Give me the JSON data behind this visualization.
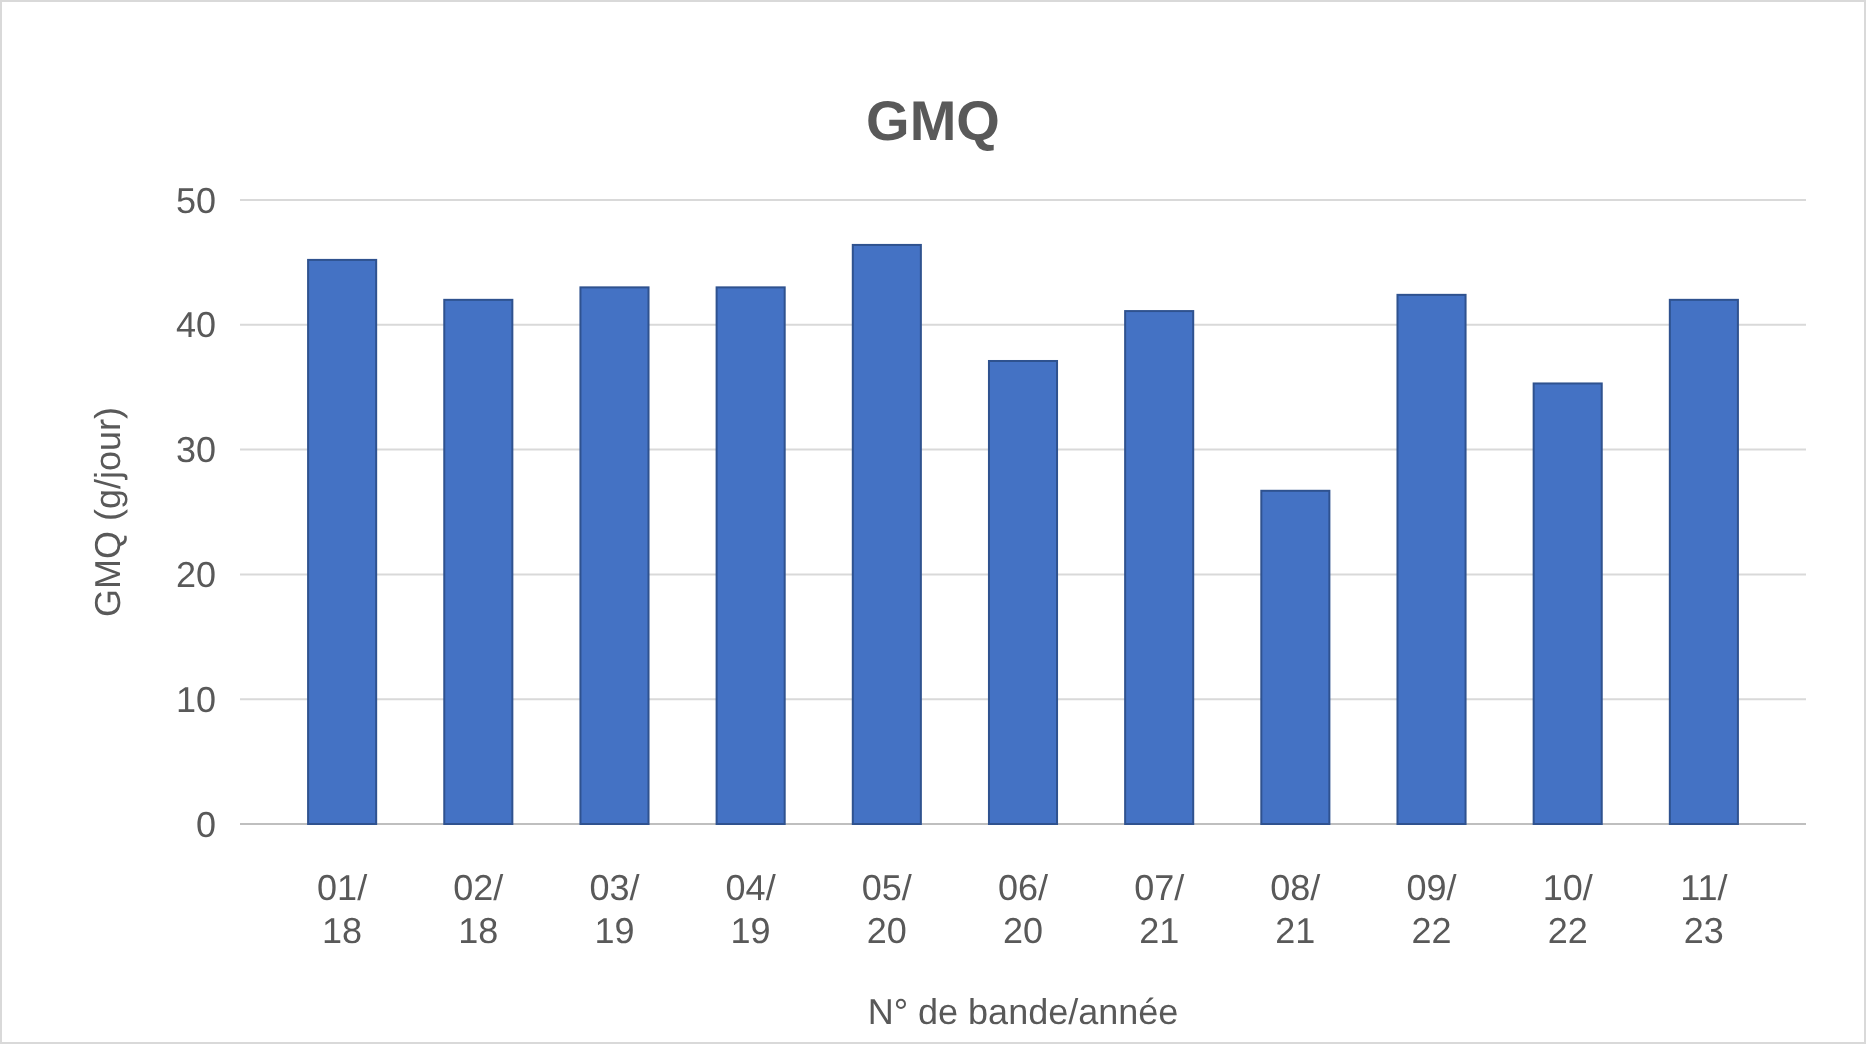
{
  "chart_data": {
    "type": "bar",
    "title": "GMQ",
    "xlabel": "N° de bande/année",
    "ylabel": "GMQ (g/jour)",
    "categories": [
      "01/\n18",
      "02/\n18",
      "03/\n19",
      "04/\n19",
      "05/\n20",
      "06/\n20",
      "07/\n21",
      "08/\n21",
      "09/\n22",
      "10/\n22",
      "11/\n23"
    ],
    "values": [
      45.2,
      42,
      43,
      43,
      46.4,
      37.1,
      41.1,
      26.7,
      42.4,
      35.3,
      42
    ],
    "color": "#4472c4",
    "ylim": [
      0,
      50
    ],
    "yticks": [
      0,
      10,
      20,
      30,
      40,
      50
    ],
    "grid": "y"
  }
}
